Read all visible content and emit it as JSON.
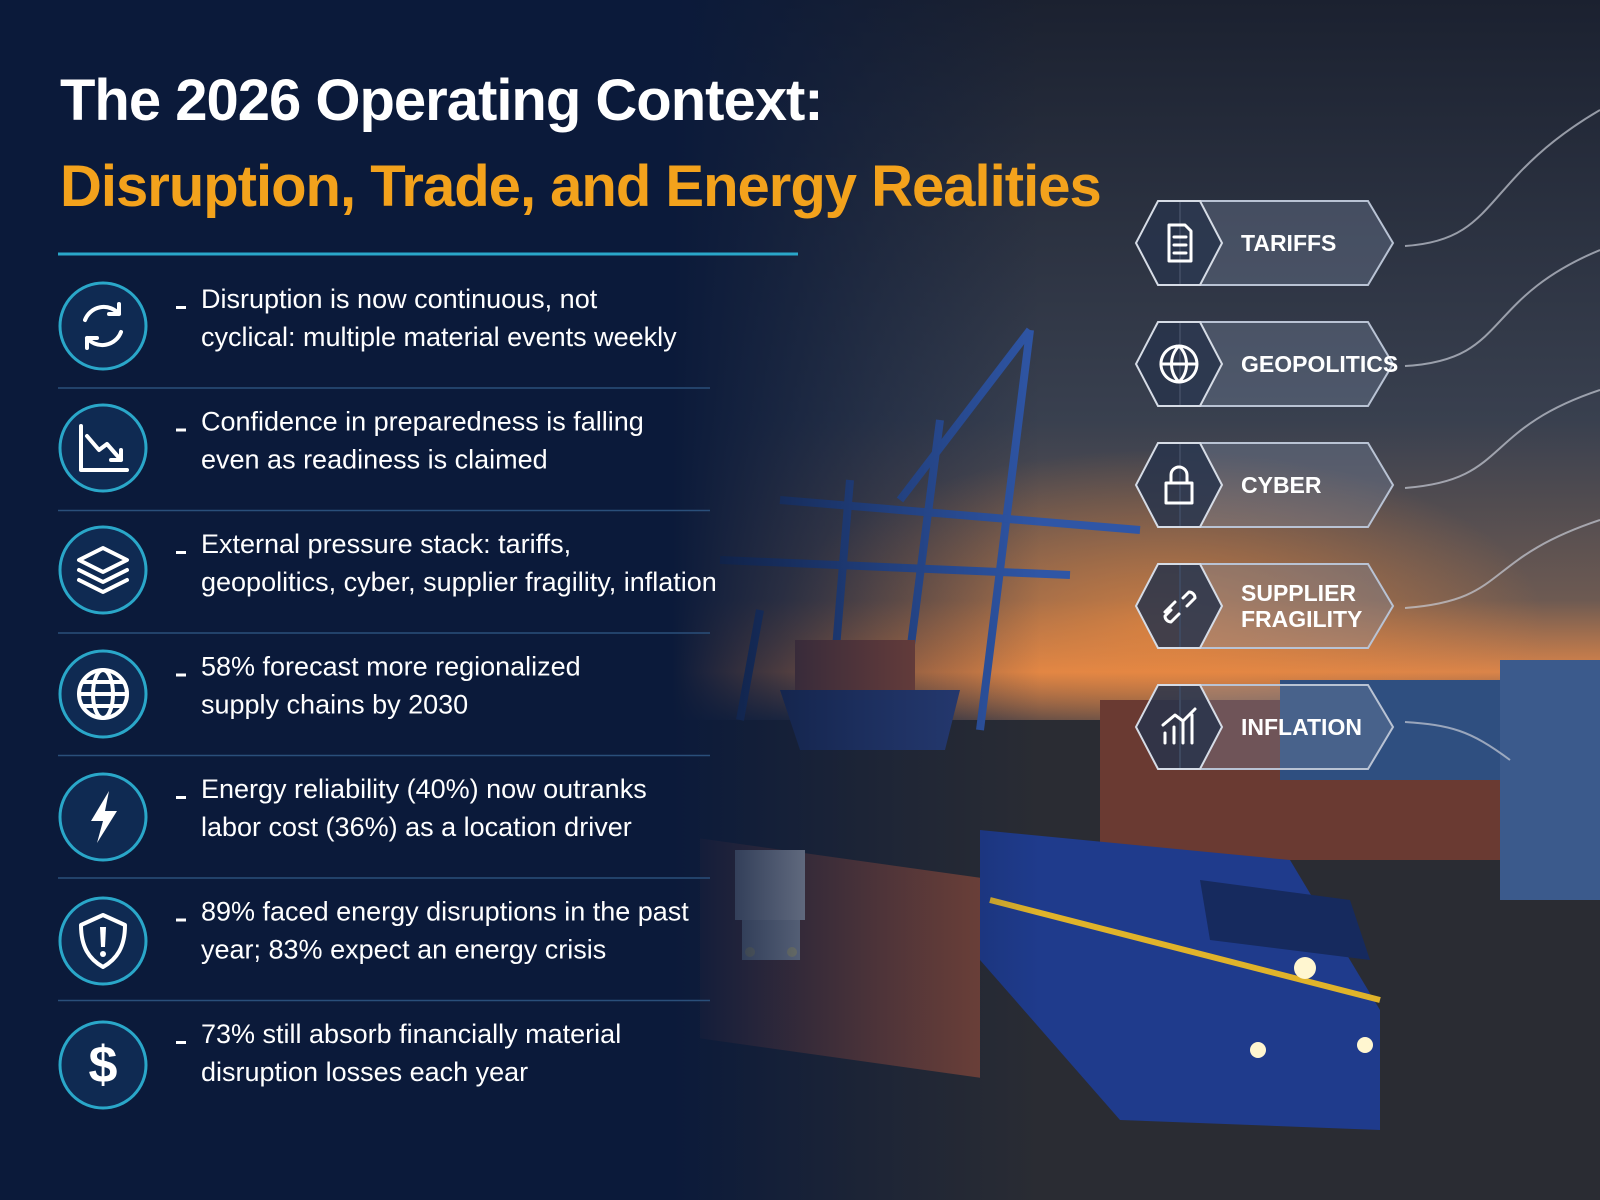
{
  "title": {
    "line1": "The 2026 Operating Context:",
    "line2": "Disruption, Trade, and Energy Realities"
  },
  "bullets": [
    {
      "lines": [
        "Disruption is now continuous, not",
        "cyclical: multiple material events weekly"
      ]
    },
    {
      "lines": [
        "Confidence in preparedness is falling",
        "even as readiness is claimed"
      ]
    },
    {
      "lines": [
        "External pressure stack: tariffs,",
        "geopolitics, cyber, supplier fragility, inflation"
      ]
    },
    {
      "lines": [
        "58% forecast more regionalized",
        "supply chains by 2030"
      ]
    },
    {
      "lines": [
        "Energy reliability (40%) now outranks",
        "labor cost (36%) as a location driver"
      ]
    },
    {
      "lines": [
        "89% faced energy disruptions in the past",
        "year; 83% expect an energy crisis"
      ]
    },
    {
      "lines": [
        "73% still absorb financially material",
        "disruption losses each year"
      ]
    }
  ],
  "pressures": [
    {
      "lines": [
        "TARIFFS"
      ]
    },
    {
      "lines": [
        "GEOPOLITICS"
      ]
    },
    {
      "lines": [
        "CYBER"
      ]
    },
    {
      "lines": [
        "SUPPLIER",
        "FRAGILITY"
      ]
    },
    {
      "lines": [
        "INFLATION"
      ]
    }
  ]
}
